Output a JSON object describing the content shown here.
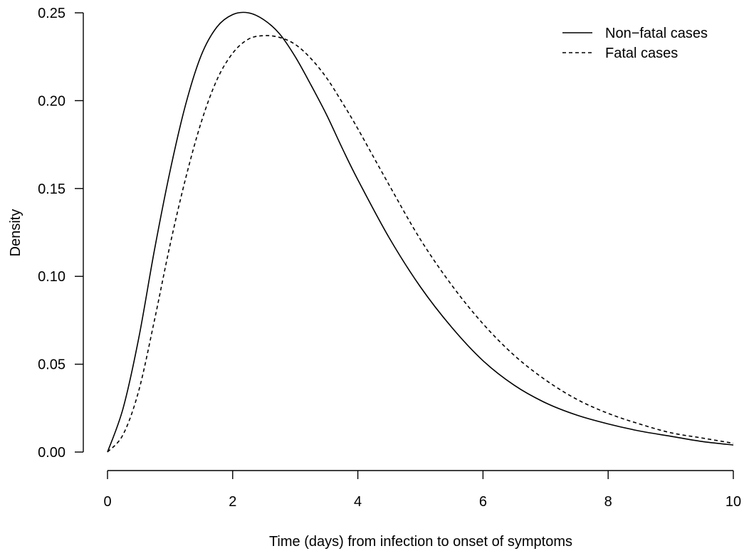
{
  "chart_data": {
    "type": "line",
    "xlabel": "Time (days) from infection to onset of symptoms",
    "ylabel": "Density",
    "xlim": [
      0,
      10
    ],
    "ylim": [
      0,
      0.25
    ],
    "x_ticks": [
      0,
      2,
      4,
      6,
      8,
      10
    ],
    "x_tick_labels": [
      "0",
      "2",
      "4",
      "6",
      "8",
      "10"
    ],
    "y_ticks": [
      0.0,
      0.05,
      0.1,
      0.15,
      0.2,
      0.25
    ],
    "y_tick_labels": [
      "0.00",
      "0.05",
      "0.10",
      "0.15",
      "0.20",
      "0.25"
    ],
    "grid": false,
    "legend_position": "top-right",
    "x": [
      0,
      0.25,
      0.5,
      0.75,
      1,
      1.25,
      1.5,
      1.75,
      2,
      2.25,
      2.5,
      2.75,
      3,
      3.25,
      3.5,
      3.75,
      4,
      4.5,
      5,
      5.5,
      6,
      6.5,
      7,
      7.5,
      8,
      8.5,
      9,
      9.5,
      10
    ],
    "series": [
      {
        "name": "Non−fatal cases",
        "line_style": "solid",
        "values": [
          0.0,
          0.025,
          0.065,
          0.115,
          0.16,
          0.198,
          0.226,
          0.242,
          0.249,
          0.25,
          0.246,
          0.238,
          0.225,
          0.209,
          0.192,
          0.173,
          0.155,
          0.122,
          0.094,
          0.071,
          0.052,
          0.038,
          0.028,
          0.021,
          0.016,
          0.012,
          0.009,
          0.006,
          0.004
        ]
      },
      {
        "name": "Fatal cases",
        "line_style": "dashed",
        "values": [
          0.0,
          0.01,
          0.035,
          0.075,
          0.118,
          0.156,
          0.188,
          0.212,
          0.227,
          0.235,
          0.237,
          0.236,
          0.232,
          0.224,
          0.213,
          0.199,
          0.184,
          0.152,
          0.121,
          0.095,
          0.073,
          0.055,
          0.041,
          0.03,
          0.022,
          0.016,
          0.011,
          0.008,
          0.005
        ]
      }
    ]
  }
}
